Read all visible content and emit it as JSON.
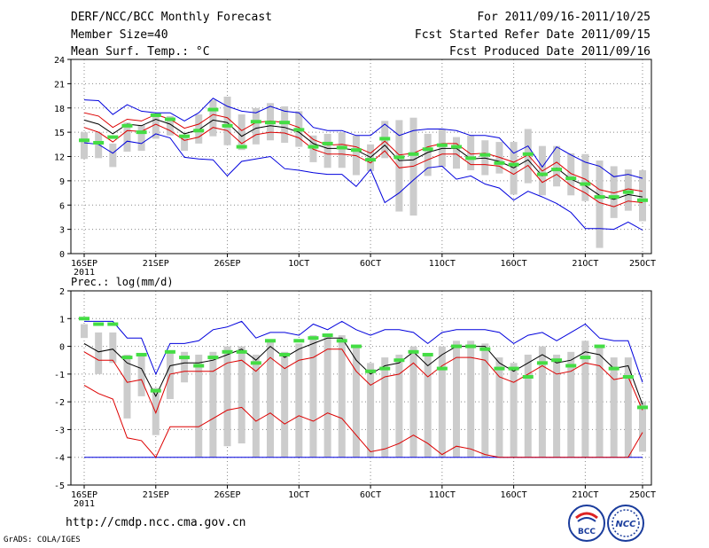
{
  "header": {
    "title": "DERF/NCC/BCC Monthly Forecast",
    "member_size": "Member Size=40",
    "variable_label": "Mean Surf. Temp.: °C",
    "period": "For 2011/09/16-2011/10/25",
    "refer_date": "Fcst Started Refer Date 2011/09/15",
    "produced_date": "Fcst Produced Date 2011/09/16"
  },
  "footer": {
    "url": "http://cmdp.ncc.cma.gov.cn",
    "grads": "GrADS: COLA/IGES",
    "logo_bcc": "BCC",
    "logo_ncc": "NCC"
  },
  "colors": {
    "ensemble_mean": "#000000",
    "spread": "#dd0000",
    "envelope": "#0000dd",
    "marker": "#44dd44",
    "box": "#cccccc"
  },
  "chart_data": [
    {
      "type": "line",
      "title": "Mean Surf. Temp.: °C",
      "xlabel": "",
      "ylabel": "",
      "ylim": [
        0,
        24
      ],
      "yticks": [
        0,
        3,
        6,
        9,
        12,
        15,
        18,
        21,
        24
      ],
      "xlim": [
        1,
        40
      ],
      "xticks": [
        {
          "day": 1,
          "label": "16SEP"
        },
        {
          "day": 6,
          "label": "21SEP"
        },
        {
          "day": 11,
          "label": "26SEP"
        },
        {
          "day": 16,
          "label": "1OCT"
        },
        {
          "day": 21,
          "label": "6OCT"
        },
        {
          "day": 26,
          "label": "11OCT"
        },
        {
          "day": 31,
          "label": "16OCT"
        },
        {
          "day": 36,
          "label": "21OCT"
        },
        {
          "day": 40,
          "label": "25OCT"
        }
      ],
      "year_label": "2011",
      "grid": true,
      "series": [
        {
          "name": "ensemble mean",
          "values": [
            16.5,
            16,
            14.8,
            16,
            15.8,
            16.6,
            16,
            14.8,
            15.3,
            16.5,
            16.2,
            14.5,
            15.5,
            15.8,
            15.6,
            15,
            13.6,
            13,
            13,
            12.8,
            11.9,
            13.4,
            11.5,
            11.6,
            12.5,
            13,
            13,
            11.7,
            11.8,
            11.4,
            10.6,
            11.6,
            9.6,
            10.6,
            9.2,
            8.4,
            7.2,
            6.7,
            7.3,
            7
          ]
        },
        {
          "name": "upper spread",
          "values": [
            17.4,
            17,
            15.6,
            16.6,
            16.4,
            17.2,
            16.6,
            15.5,
            16,
            17.2,
            16.8,
            15.2,
            16.2,
            16.4,
            16.2,
            15.6,
            14.1,
            13.4,
            13.5,
            13.2,
            12.4,
            13.9,
            12.2,
            12.4,
            13.2,
            13.6,
            13.6,
            12.3,
            12.4,
            11.9,
            11.3,
            12.2,
            10.2,
            11.3,
            9.9,
            9.2,
            7.9,
            7.5,
            8,
            7.7
          ]
        },
        {
          "name": "lower spread",
          "values": [
            15.6,
            15,
            13.8,
            15.2,
            15.1,
            16,
            15.2,
            14,
            14.4,
            15.6,
            15.2,
            13.6,
            14.7,
            15,
            14.9,
            14.3,
            12.9,
            12.3,
            12.3,
            12.1,
            11.2,
            12.7,
            10.6,
            10.8,
            11.6,
            12.3,
            12.3,
            11,
            11,
            10.8,
            9.8,
            10.9,
            8.8,
            9.8,
            8.4,
            7.5,
            6.3,
            5.8,
            6.5,
            6.3
          ]
        },
        {
          "name": "ensemble max",
          "values": [
            19,
            18.9,
            17.2,
            18.4,
            17.6,
            17.4,
            17.4,
            16.4,
            17.4,
            19.2,
            18.2,
            17.6,
            17.4,
            18.2,
            17.6,
            17.4,
            15.6,
            15.2,
            15.2,
            14.6,
            14.6,
            16,
            14.6,
            15.2,
            15.4,
            15.4,
            15.2,
            14.6,
            14.6,
            14.3,
            12.4,
            13.3,
            10.7,
            13.2,
            12.2,
            11.3,
            10.8,
            9.5,
            9.8,
            9.3
          ]
        },
        {
          "name": "ensemble min",
          "values": [
            13.7,
            13.5,
            12.4,
            13.9,
            13.6,
            14.8,
            14.3,
            11.9,
            11.7,
            11.6,
            9.6,
            11.4,
            11.7,
            12,
            10.5,
            10.3,
            10,
            9.8,
            9.8,
            8.3,
            10.4,
            6.3,
            7.5,
            9.1,
            10.6,
            10.8,
            9.2,
            9.6,
            8.6,
            8.1,
            6.6,
            7.7,
            7,
            6.2,
            5.1,
            3.1,
            3.1,
            3,
            3.9,
            2.9
          ]
        },
        {
          "name": "observed/marker",
          "values": [
            14,
            13.7,
            14.4,
            15.8,
            15,
            17.1,
            16.6,
            14.5,
            15.2,
            17.8,
            15.8,
            13.2,
            16.3,
            16.2,
            16.2,
            15.3,
            13.2,
            13.6,
            13.1,
            12.8,
            11.6,
            14.2,
            11.9,
            12.3,
            12.9,
            13.4,
            13.2,
            11.8,
            12.2,
            11.2,
            11,
            12.3,
            9.8,
            10.4,
            9.3,
            8.6,
            7,
            7,
            7.6,
            6.6
          ]
        },
        {
          "name": "box upper",
          "values": [
            15,
            15,
            13.6,
            16.2,
            15.9,
            16.9,
            17,
            14.6,
            17.2,
            19,
            19.4,
            17.2,
            18,
            18.6,
            18.2,
            17.6,
            14.6,
            14.8,
            15,
            14.6,
            13.5,
            16.4,
            16.5,
            16.8,
            14.8,
            15.4,
            14.4,
            14.6,
            14,
            13.8,
            13.8,
            15.4,
            13.3,
            13.3,
            12.4,
            12.3,
            11.5,
            10.8,
            10.4,
            10.3
          ]
        },
        {
          "name": "box lower",
          "values": [
            11.7,
            11.8,
            10.7,
            12.6,
            12.7,
            14.2,
            14.6,
            12.7,
            13.6,
            14.5,
            13.4,
            12.8,
            13.5,
            14,
            13.7,
            13.2,
            11.3,
            10.6,
            10.6,
            9.7,
            10.2,
            11.8,
            5.2,
            4.7,
            9.6,
            10.7,
            10.5,
            10.3,
            9.7,
            9.9,
            7.3,
            8.7,
            7.2,
            8.3,
            7.2,
            6.5,
            0.7,
            4.4,
            5.3,
            4
          ]
        }
      ]
    },
    {
      "type": "line",
      "title": "Prec.: log(mm/d)",
      "xlabel": "",
      "ylabel": "",
      "ylim": [
        -5,
        2
      ],
      "yticks": [
        -5,
        -4,
        -3,
        -2,
        -1,
        0,
        1,
        2
      ],
      "xlim": [
        1,
        40
      ],
      "xticks": [
        {
          "day": 1,
          "label": "16SEP"
        },
        {
          "day": 6,
          "label": "21SEP"
        },
        {
          "day": 11,
          "label": "26SEP"
        },
        {
          "day": 16,
          "label": "1OCT"
        },
        {
          "day": 21,
          "label": "6OCT"
        },
        {
          "day": 26,
          "label": "11OCT"
        },
        {
          "day": 31,
          "label": "16OCT"
        },
        {
          "day": 36,
          "label": "21OCT"
        },
        {
          "day": 40,
          "label": "25OCT"
        }
      ],
      "year_label": "2011",
      "grid": true,
      "series": [
        {
          "name": "ensemble mean",
          "values": [
            0.1,
            -0.2,
            -0.1,
            -0.6,
            -0.8,
            -1.8,
            -0.7,
            -0.6,
            -0.6,
            -0.5,
            -0.3,
            -0.1,
            -0.5,
            0,
            -0.4,
            -0.1,
            0.1,
            0.3,
            0.3,
            -0.5,
            -1,
            -0.7,
            -0.6,
            -0.2,
            -0.7,
            -0.3,
            0,
            0,
            0,
            -0.6,
            -0.9,
            -0.6,
            -0.3,
            -0.6,
            -0.5,
            -0.2,
            -0.3,
            -0.8,
            -0.7,
            -2.1
          ]
        },
        {
          "name": "upper spread",
          "values": [
            -0.2,
            -0.5,
            -0.5,
            -1.3,
            -1.2,
            -2.4,
            -1,
            -0.9,
            -0.9,
            -0.9,
            -0.6,
            -0.5,
            -0.9,
            -0.4,
            -0.8,
            -0.5,
            -0.4,
            -0.1,
            -0.1,
            -0.9,
            -1.4,
            -1.1,
            -1,
            -0.6,
            -1.1,
            -0.7,
            -0.4,
            -0.4,
            -0.5,
            -1.1,
            -1.3,
            -1,
            -0.7,
            -1,
            -0.9,
            -0.6,
            -0.7,
            -1.2,
            -1.1,
            -2.3
          ]
        },
        {
          "name": "lower spread",
          "values": [
            -1.4,
            -1.7,
            -1.9,
            -3.3,
            -3.4,
            -4,
            -2.9,
            -2.9,
            -2.9,
            -2.6,
            -2.3,
            -2.2,
            -2.7,
            -2.4,
            -2.8,
            -2.5,
            -2.7,
            -2.4,
            -2.6,
            -3.2,
            -3.8,
            -3.7,
            -3.5,
            -3.2,
            -3.5,
            -3.9,
            -3.6,
            -3.7,
            -3.9,
            -4,
            -4,
            -4,
            -4,
            -4,
            -4,
            -4,
            -4,
            -4,
            -4,
            -3.1
          ]
        },
        {
          "name": "ensemble max",
          "values": [
            0.9,
            0.9,
            0.9,
            0.3,
            0.3,
            -1,
            0.1,
            0.1,
            0.2,
            0.6,
            0.7,
            0.9,
            0.3,
            0.5,
            0.5,
            0.4,
            0.8,
            0.6,
            0.9,
            0.6,
            0.4,
            0.6,
            0.6,
            0.5,
            0.1,
            0.5,
            0.6,
            0.6,
            0.6,
            0.5,
            0.1,
            0.4,
            0.5,
            0.2,
            0.5,
            0.8,
            0.3,
            0.2,
            0.2,
            -1.3
          ]
        },
        {
          "name": "ensemble min",
          "values": [
            -4,
            -4,
            -4,
            -4,
            -4,
            -4,
            -4,
            -4,
            -4,
            -4,
            -4,
            -4,
            -4,
            -4,
            -4,
            -4,
            -4,
            -4,
            -4,
            -4,
            -4,
            -4,
            -4,
            -4,
            -4,
            -4,
            -4,
            -4,
            -4,
            -4,
            -4,
            -4,
            -4,
            -4,
            -4,
            -4,
            -4,
            -4,
            -4,
            -4
          ]
        },
        {
          "name": "observed/marker",
          "values": [
            1,
            0.8,
            0.8,
            -0.4,
            -0.3,
            -1.6,
            -0.2,
            -0.4,
            -0.7,
            -0.4,
            -0.2,
            -0.2,
            -0.6,
            0.2,
            -0.3,
            0.2,
            0.3,
            0.4,
            0.2,
            0,
            -0.9,
            -0.8,
            -0.5,
            -0.2,
            -0.3,
            -0.8,
            0,
            0,
            -0.1,
            -0.8,
            -0.8,
            -1.1,
            -0.6,
            -0.5,
            -0.7,
            -0.4,
            0,
            -0.8,
            -1.1,
            -2.2
          ]
        },
        {
          "name": "box upper",
          "values": [
            0.8,
            0.5,
            0.5,
            -0.3,
            -0.3,
            -1.5,
            -0.2,
            -0.2,
            -0.3,
            -0.2,
            0,
            0,
            -0.3,
            0.2,
            -0.2,
            0.1,
            0.4,
            0.4,
            0.4,
            0,
            -0.6,
            -0.4,
            -0.3,
            0,
            -0.3,
            0,
            0.2,
            0.2,
            0.1,
            -0.4,
            -0.6,
            -0.3,
            0,
            -0.3,
            -0.2,
            0.2,
            0,
            -0.4,
            -0.4,
            -2
          ]
        },
        {
          "name": "box lower",
          "values": [
            0.3,
            -1,
            -0.6,
            -2.6,
            -1.8,
            -3.2,
            -1.9,
            -1.3,
            -4,
            -4,
            -3.6,
            -3.5,
            -4,
            -4,
            -4,
            -4,
            -4,
            -4,
            -4,
            -4,
            -4,
            -4,
            -4,
            -4,
            -4,
            -4,
            -4,
            -4,
            -4,
            -4,
            -4,
            -4,
            -4,
            -4,
            -4,
            -4,
            -4,
            -4,
            -4,
            -3.8
          ]
        }
      ]
    }
  ]
}
